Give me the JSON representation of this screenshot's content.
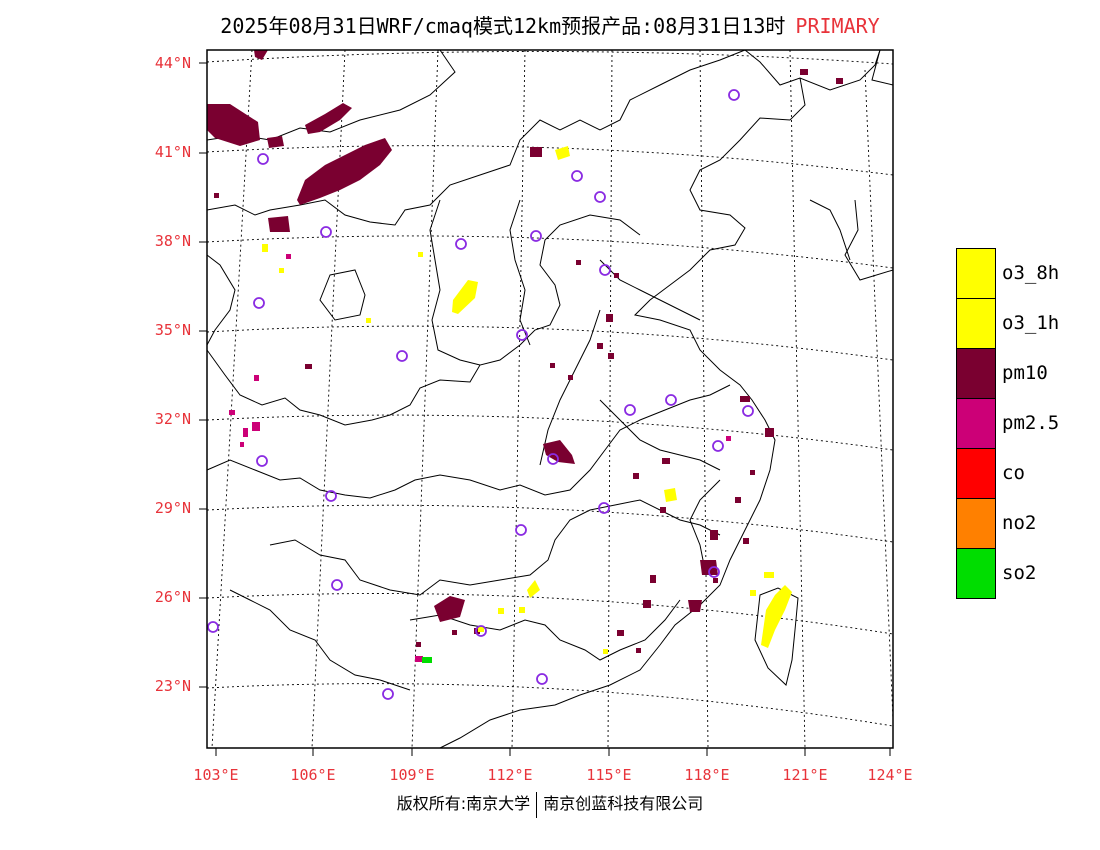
{
  "title": "2025年08月31日WRF/cmaq模式12km预报产品:08月31日13时",
  "title_tag": "PRIMARY",
  "lat_labels": [
    "44°N",
    "41°N",
    "38°N",
    "35°N",
    "32°N",
    "29°N",
    "26°N",
    "23°N"
  ],
  "lon_labels": [
    "103°E",
    "106°E",
    "109°E",
    "112°E",
    "115°E",
    "118°E",
    "121°E",
    "124°E"
  ],
  "legend": [
    {
      "label": "o3_8h",
      "color": "#ffff00"
    },
    {
      "label": "o3_1h",
      "color": "#ffff00"
    },
    {
      "label": "pm10",
      "color": "#7a0030"
    },
    {
      "label": "pm2.5",
      "color": "#cc0077"
    },
    {
      "label": "co",
      "color": "#ff0000"
    },
    {
      "label": "no2",
      "color": "#ff8000"
    },
    {
      "label": "so2",
      "color": "#00dd00"
    }
  ],
  "footer": {
    "left": "版权所有:南京大学",
    "right": "南京创蓝科技有限公司"
  },
  "colors": {
    "axis_label": "#e8333a",
    "circle": "#8a2be2"
  }
}
